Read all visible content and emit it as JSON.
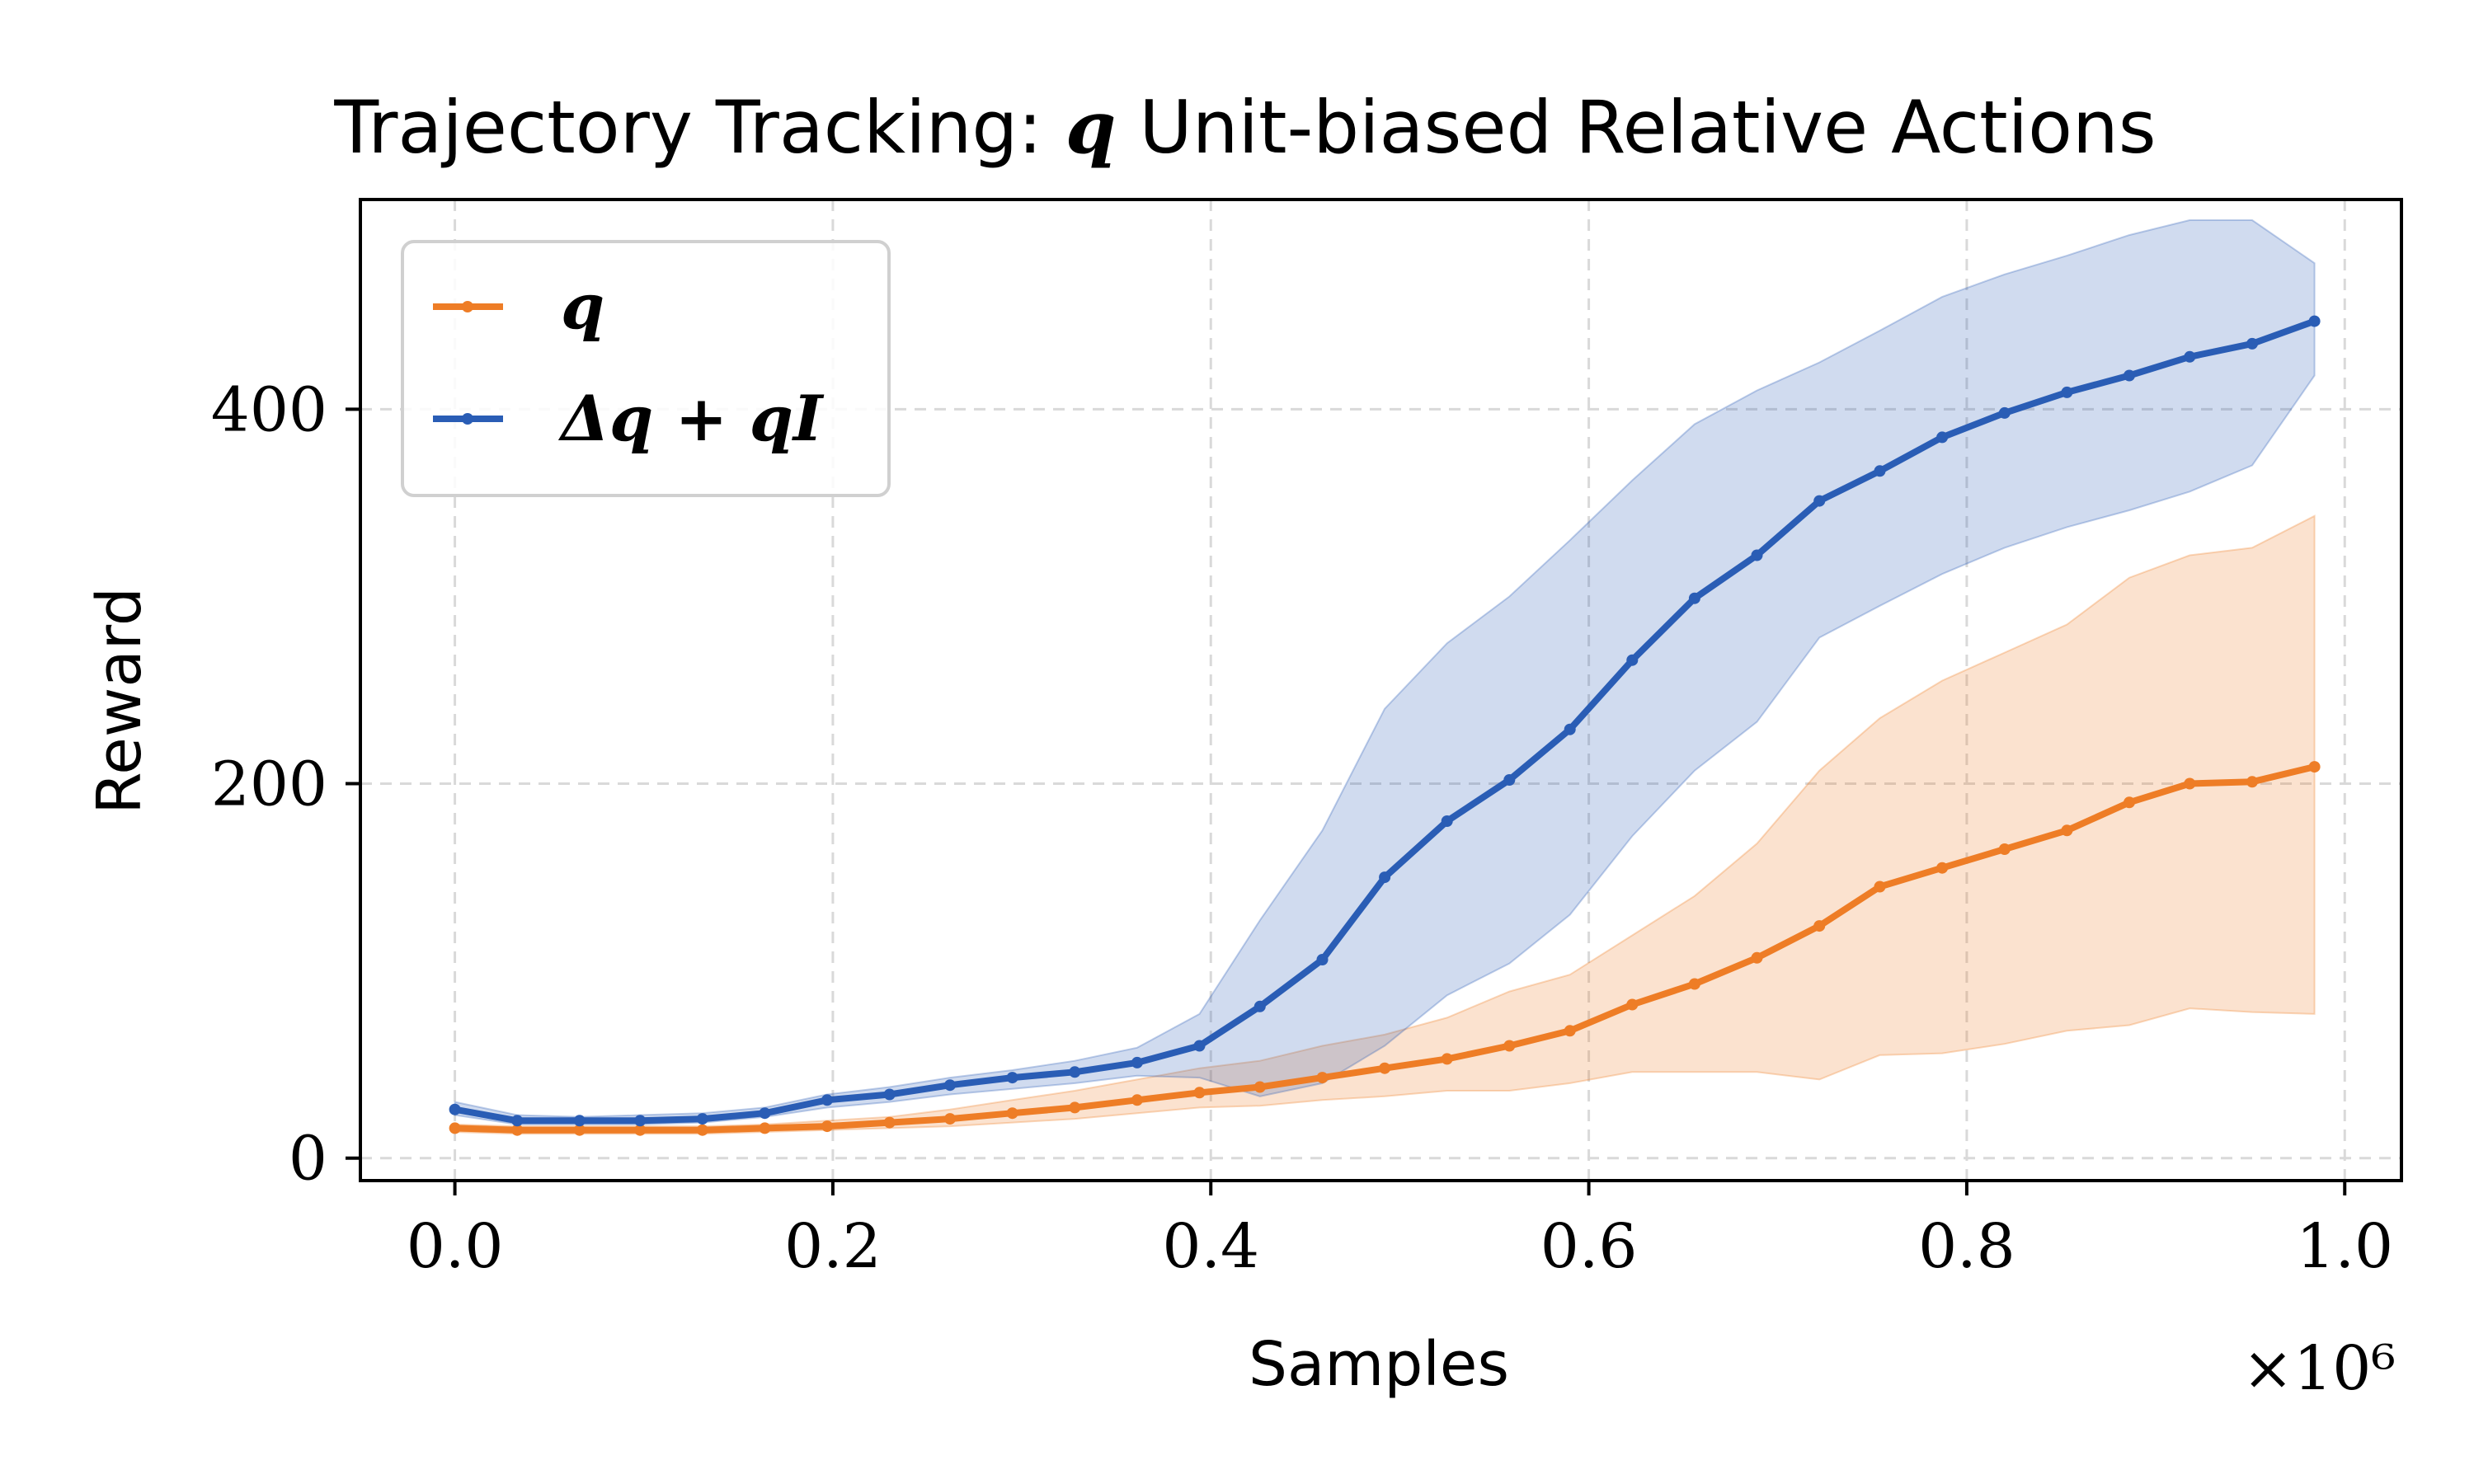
{
  "chart_data": {
    "type": "line",
    "title_prefix": "Trajectory Tracking: ",
    "title_math": "q",
    "title_suffix": " Unit-biased Relative Actions",
    "xlabel": "Samples",
    "ylabel": "Reward",
    "x_multiplier_label": "×10⁶",
    "xlim": [
      -0.05,
      1.03
    ],
    "ylim": [
      -12,
      512
    ],
    "xticks": [
      0.0,
      0.2,
      0.4,
      0.6,
      0.8,
      1.0
    ],
    "xtick_labels": [
      "0.0",
      "0.2",
      "0.4",
      "0.6",
      "0.8",
      "1.0"
    ],
    "yticks": [
      0,
      200,
      400
    ],
    "ytick_labels": [
      "0",
      "200",
      "400"
    ],
    "grid": true,
    "legend_position": "top-left",
    "x": [
      0.0,
      0.033,
      0.066,
      0.098,
      0.131,
      0.164,
      0.197,
      0.23,
      0.262,
      0.295,
      0.328,
      0.361,
      0.394,
      0.426,
      0.459,
      0.492,
      0.525,
      0.558,
      0.59,
      0.623,
      0.656,
      0.689,
      0.722,
      0.754,
      0.787,
      0.82,
      0.853,
      0.886,
      0.918,
      0.951,
      0.984
    ],
    "series": [
      {
        "name": "q",
        "color": "#EE7D26",
        "values": [
          16,
          15,
          15,
          15,
          15,
          16,
          17,
          19,
          21,
          24,
          27,
          31,
          35,
          38,
          43,
          48,
          53,
          60,
          68,
          82,
          93,
          107,
          124,
          145,
          155,
          165,
          175,
          190,
          200,
          201,
          209
        ],
        "lower": [
          14,
          13,
          13,
          13,
          13,
          14,
          15,
          16,
          17,
          19,
          21,
          24,
          27,
          28,
          31,
          33,
          36,
          36,
          40,
          46,
          46,
          46,
          42,
          55,
          56,
          61,
          68,
          71,
          80,
          78,
          77
        ],
        "upper": [
          18,
          17,
          17,
          17,
          17,
          18,
          20,
          22,
          26,
          31,
          36,
          42,
          48,
          52,
          60,
          66,
          75,
          89,
          98,
          119,
          140,
          168,
          207,
          235,
          255,
          270,
          285,
          310,
          322,
          326,
          343
        ]
      },
      {
        "name": "Δq + q_I",
        "color": "#2A5DB5",
        "values": [
          26,
          20,
          20,
          20,
          21,
          24,
          31,
          34,
          39,
          43,
          46,
          51,
          60,
          81,
          106,
          150,
          180,
          202,
          229,
          266,
          299,
          322,
          351,
          367,
          385,
          398,
          409,
          418,
          428,
          435,
          447
        ],
        "lower": [
          23,
          18,
          18,
          18,
          19,
          22,
          27,
          30,
          34,
          37,
          40,
          44,
          43,
          33,
          40,
          60,
          87,
          104,
          130,
          172,
          207,
          233,
          278,
          295,
          312,
          326,
          337,
          346,
          356,
          370,
          418
        ],
        "upper": [
          30,
          23,
          22,
          23,
          24,
          27,
          34,
          38,
          43,
          47,
          52,
          59,
          77,
          127,
          175,
          240,
          275,
          300,
          330,
          362,
          392,
          410,
          425,
          442,
          460,
          472,
          482,
          493,
          501,
          501,
          478
        ]
      }
    ],
    "legend": [
      {
        "label": "q",
        "color": "#EE7D26"
      },
      {
        "label": "Δq + qI",
        "color": "#2A5DB5"
      }
    ]
  }
}
